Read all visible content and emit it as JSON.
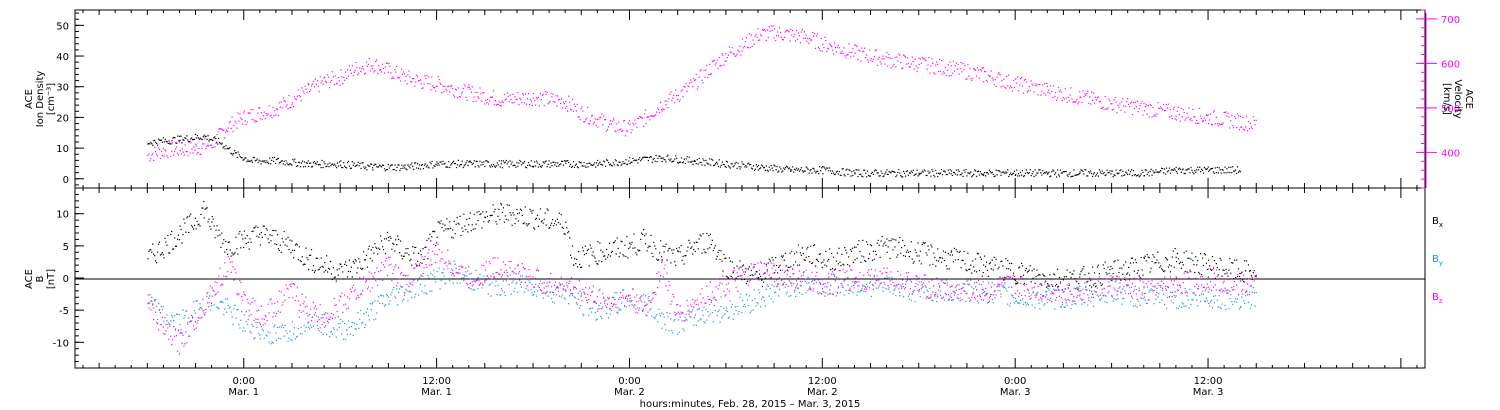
{
  "chart_data": [
    {
      "type": "scatter",
      "panel": "top",
      "left_axis": {
        "label_lines": [
          "ACE",
          "Ion Density",
          "[cm⁻³]"
        ],
        "ylim": [
          -3,
          55
        ],
        "ticks": [
          0,
          10,
          20,
          30,
          40,
          50
        ],
        "tick_labels": [
          "0",
          "10",
          "20",
          "30",
          "40",
          "50"
        ]
      },
      "right_axis": {
        "label_lines": [
          "ACE",
          "Velocity",
          "[km/s]"
        ],
        "ylim": [
          320,
          720
        ],
        "ticks": [
          400,
          500,
          600,
          700
        ],
        "tick_labels": [
          "400",
          "500",
          "600",
          "700"
        ],
        "color": "#ff00ff"
      },
      "x_hours": [
        -6,
        48,
        66
      ],
      "series": [
        {
          "axis": "left",
          "color": "#000000",
          "points": [
            [
              -6,
              12
            ],
            [
              -4,
              13
            ],
            [
              -2.5,
              14
            ],
            [
              -1.5,
              12
            ],
            [
              -0.5,
              8
            ],
            [
              0.5,
              6
            ],
            [
              2,
              6
            ],
            [
              4,
              5
            ],
            [
              6,
              5
            ],
            [
              8,
              4
            ],
            [
              10,
              4
            ],
            [
              12,
              5
            ],
            [
              14,
              5
            ],
            [
              16,
              5
            ],
            [
              18,
              5
            ],
            [
              20,
              5
            ],
            [
              22,
              5
            ],
            [
              24,
              6
            ],
            [
              26,
              7
            ],
            [
              28,
              6
            ],
            [
              30,
              5
            ],
            [
              32,
              4
            ],
            [
              34,
              3
            ],
            [
              36,
              3
            ],
            [
              38,
              2
            ],
            [
              40,
              2
            ],
            [
              42,
              2
            ],
            [
              44,
              2
            ],
            [
              46,
              2
            ],
            [
              48,
              2
            ],
            [
              50,
              2
            ],
            [
              52,
              2
            ],
            [
              54,
              2
            ],
            [
              56,
              2
            ],
            [
              58,
              3
            ],
            [
              60,
              3
            ],
            [
              62,
              3
            ]
          ]
        },
        {
          "axis": "right",
          "color": "#ff00ff",
          "points": [
            [
              -6,
              395
            ],
            [
              -5,
              405
            ],
            [
              -3,
              410
            ],
            [
              -2,
              420
            ],
            [
              -1,
              460
            ],
            [
              0,
              480
            ],
            [
              1,
              490
            ],
            [
              2,
              500
            ],
            [
              3,
              520
            ],
            [
              4,
              540
            ],
            [
              5,
              560
            ],
            [
              6,
              570
            ],
            [
              7,
              590
            ],
            [
              8,
              600
            ],
            [
              9,
              585
            ],
            [
              10,
              570
            ],
            [
              11,
              560
            ],
            [
              12,
              555
            ],
            [
              14,
              535
            ],
            [
              16,
              520
            ],
            [
              18,
              525
            ],
            [
              20,
              515
            ],
            [
              21,
              490
            ],
            [
              22,
              475
            ],
            [
              23,
              460
            ],
            [
              24,
              455
            ],
            [
              25,
              480
            ],
            [
              26,
              510
            ],
            [
              27,
              530
            ],
            [
              28,
              555
            ],
            [
              29,
              590
            ],
            [
              30,
              620
            ],
            [
              31,
              640
            ],
            [
              32,
              665
            ],
            [
              33,
              670
            ],
            [
              34,
              665
            ],
            [
              35,
              660
            ],
            [
              36,
              645
            ],
            [
              38,
              625
            ],
            [
              40,
              610
            ],
            [
              42,
              600
            ],
            [
              44,
              590
            ],
            [
              46,
              575
            ],
            [
              48,
              555
            ],
            [
              50,
              540
            ],
            [
              52,
              525
            ],
            [
              54,
              510
            ],
            [
              56,
              500
            ],
            [
              58,
              490
            ],
            [
              60,
              480
            ],
            [
              62,
              470
            ],
            [
              63,
              465
            ]
          ]
        }
      ]
    },
    {
      "type": "scatter",
      "panel": "bottom",
      "left_axis": {
        "label_lines": [
          "ACE",
          "B",
          "[nT]"
        ],
        "ylim": [
          -14,
          14
        ],
        "ticks": [
          -10,
          -5,
          0,
          5,
          10
        ],
        "tick_labels": [
          "-10",
          "-5",
          "0",
          "5",
          "10"
        ]
      },
      "legend": [
        {
          "text": "B",
          "sub": "x",
          "color": "#000000"
        },
        {
          "text": "B",
          "sub": "y",
          "color": "#1e90ff"
        },
        {
          "text": "B",
          "sub": "z",
          "color": "#ff00ff"
        }
      ],
      "series": [
        {
          "name": "Bx",
          "color": "#000000",
          "points": [
            [
              -6,
              3
            ],
            [
              -5,
              5
            ],
            [
              -4,
              7
            ],
            [
              -3,
              9
            ],
            [
              -2.5,
              11
            ],
            [
              -2,
              8
            ],
            [
              -1,
              5
            ],
            [
              0,
              6
            ],
            [
              1,
              7
            ],
            [
              2,
              6
            ],
            [
              3,
              5
            ],
            [
              4,
              3
            ],
            [
              5,
              2
            ],
            [
              6,
              1
            ],
            [
              7,
              2
            ],
            [
              8,
              4
            ],
            [
              9,
              6
            ],
            [
              10,
              4
            ],
            [
              11,
              3
            ],
            [
              12,
              7
            ],
            [
              13,
              8
            ],
            [
              14,
              9
            ],
            [
              15,
              9.5
            ],
            [
              16,
              10
            ],
            [
              17,
              10
            ],
            [
              18,
              9.5
            ],
            [
              19,
              9
            ],
            [
              20,
              8.5
            ],
            [
              20.5,
              3
            ],
            [
              22,
              4
            ],
            [
              24,
              5
            ],
            [
              25,
              6
            ],
            [
              26,
              4
            ],
            [
              27,
              3
            ],
            [
              28,
              5
            ],
            [
              29,
              6
            ],
            [
              30,
              2
            ],
            [
              31,
              1
            ],
            [
              32,
              0
            ],
            [
              33,
              2
            ],
            [
              34,
              3
            ],
            [
              35,
              4
            ],
            [
              36,
              3
            ],
            [
              37,
              3
            ],
            [
              38,
              4
            ],
            [
              40,
              5
            ],
            [
              42,
              4
            ],
            [
              44,
              3
            ],
            [
              46,
              2
            ],
            [
              48,
              1
            ],
            [
              50,
              0
            ],
            [
              52,
              0
            ],
            [
              54,
              1
            ],
            [
              56,
              2
            ],
            [
              58,
              3
            ],
            [
              60,
              2
            ],
            [
              62,
              1
            ],
            [
              63,
              1
            ]
          ]
        },
        {
          "name": "By",
          "color": "#1e90ff",
          "points": [
            [
              -6,
              -4
            ],
            [
              -5,
              -6
            ],
            [
              -4,
              -7
            ],
            [
              -3,
              -5
            ],
            [
              -2,
              -3
            ],
            [
              -1,
              -5
            ],
            [
              0,
              -7
            ],
            [
              1,
              -8
            ],
            [
              2,
              -9
            ],
            [
              3,
              -8
            ],
            [
              4,
              -6
            ],
            [
              5,
              -7
            ],
            [
              6,
              -8
            ],
            [
              7,
              -7
            ],
            [
              8,
              -5
            ],
            [
              9,
              -3
            ],
            [
              10,
              -2
            ],
            [
              11,
              -1
            ],
            [
              12,
              0
            ],
            [
              13,
              1
            ],
            [
              14,
              0
            ],
            [
              15,
              -1
            ],
            [
              16,
              -1
            ],
            [
              17,
              -1
            ],
            [
              18,
              -1
            ],
            [
              19,
              -2
            ],
            [
              20,
              -2
            ],
            [
              21,
              -4
            ],
            [
              22,
              -5
            ],
            [
              23,
              -4
            ],
            [
              24,
              -3
            ],
            [
              25,
              -4
            ],
            [
              26,
              -6
            ],
            [
              27,
              -7
            ],
            [
              28,
              -6
            ],
            [
              29,
              -5
            ],
            [
              30,
              -5
            ],
            [
              31,
              -4
            ],
            [
              32,
              -3
            ],
            [
              33,
              -2
            ],
            [
              34,
              -1
            ],
            [
              35,
              -1
            ],
            [
              36,
              -1
            ],
            [
              38,
              -1
            ],
            [
              40,
              -1
            ],
            [
              42,
              -2
            ],
            [
              44,
              -2
            ],
            [
              46,
              -2
            ],
            [
              48,
              -3
            ],
            [
              50,
              -3
            ],
            [
              52,
              -3
            ],
            [
              54,
              -2
            ],
            [
              56,
              -3
            ],
            [
              58,
              -3
            ],
            [
              60,
              -3
            ],
            [
              62,
              -3
            ],
            [
              63,
              -3
            ]
          ]
        },
        {
          "name": "Bz",
          "color": "#ff00ff",
          "points": [
            [
              -6,
              -3
            ],
            [
              -5,
              -8
            ],
            [
              -4,
              -10
            ],
            [
              -3,
              -6
            ],
            [
              -2,
              -2
            ],
            [
              -1,
              2
            ],
            [
              0,
              -3
            ],
            [
              1,
              -6
            ],
            [
              2,
              -4
            ],
            [
              3,
              -2
            ],
            [
              4,
              -5
            ],
            [
              5,
              -6
            ],
            [
              6,
              -4
            ],
            [
              7,
              -2
            ],
            [
              8,
              0
            ],
            [
              9,
              2
            ],
            [
              10,
              -1
            ],
            [
              11,
              2
            ],
            [
              12,
              4
            ],
            [
              13,
              2
            ],
            [
              14,
              0
            ],
            [
              15,
              1
            ],
            [
              16,
              2
            ],
            [
              17,
              1
            ],
            [
              18,
              0
            ],
            [
              19,
              -1
            ],
            [
              20,
              -1
            ],
            [
              21,
              -2
            ],
            [
              22,
              -3
            ],
            [
              23,
              -4
            ],
            [
              24,
              -3
            ],
            [
              25,
              -5
            ],
            [
              26,
              2
            ],
            [
              27,
              -6
            ],
            [
              28,
              -4
            ],
            [
              29,
              -2
            ],
            [
              30,
              -1
            ],
            [
              31,
              0
            ],
            [
              32,
              1
            ],
            [
              33,
              1
            ],
            [
              34,
              0
            ],
            [
              36,
              -1
            ],
            [
              38,
              0
            ],
            [
              40,
              0
            ],
            [
              42,
              -1
            ],
            [
              44,
              -2
            ],
            [
              46,
              -2
            ],
            [
              48,
              -1
            ],
            [
              50,
              -2
            ],
            [
              52,
              -2
            ],
            [
              54,
              -1
            ],
            [
              56,
              -2
            ],
            [
              58,
              -1
            ],
            [
              60,
              0
            ],
            [
              62,
              -1
            ],
            [
              63,
              -1
            ]
          ]
        }
      ]
    }
  ],
  "x_axis": {
    "range_hours": [
      -10.5,
      73.5
    ],
    "ticks": [
      {
        "hour": 0,
        "time": "0:00",
        "date": "Mar. 1"
      },
      {
        "hour": 12,
        "time": "12:00",
        "date": "Mar. 1"
      },
      {
        "hour": 24,
        "time": "0:00",
        "date": "Mar. 2"
      },
      {
        "hour": 36,
        "time": "12:00",
        "date": "Mar. 2"
      },
      {
        "hour": 48,
        "time": "0:00",
        "date": "Mar. 3"
      },
      {
        "hour": 60,
        "time": "12:00",
        "date": "Mar. 3"
      }
    ],
    "label": "hours:minutes, Feb. 28, 2015 – Mar.  3, 2015"
  }
}
